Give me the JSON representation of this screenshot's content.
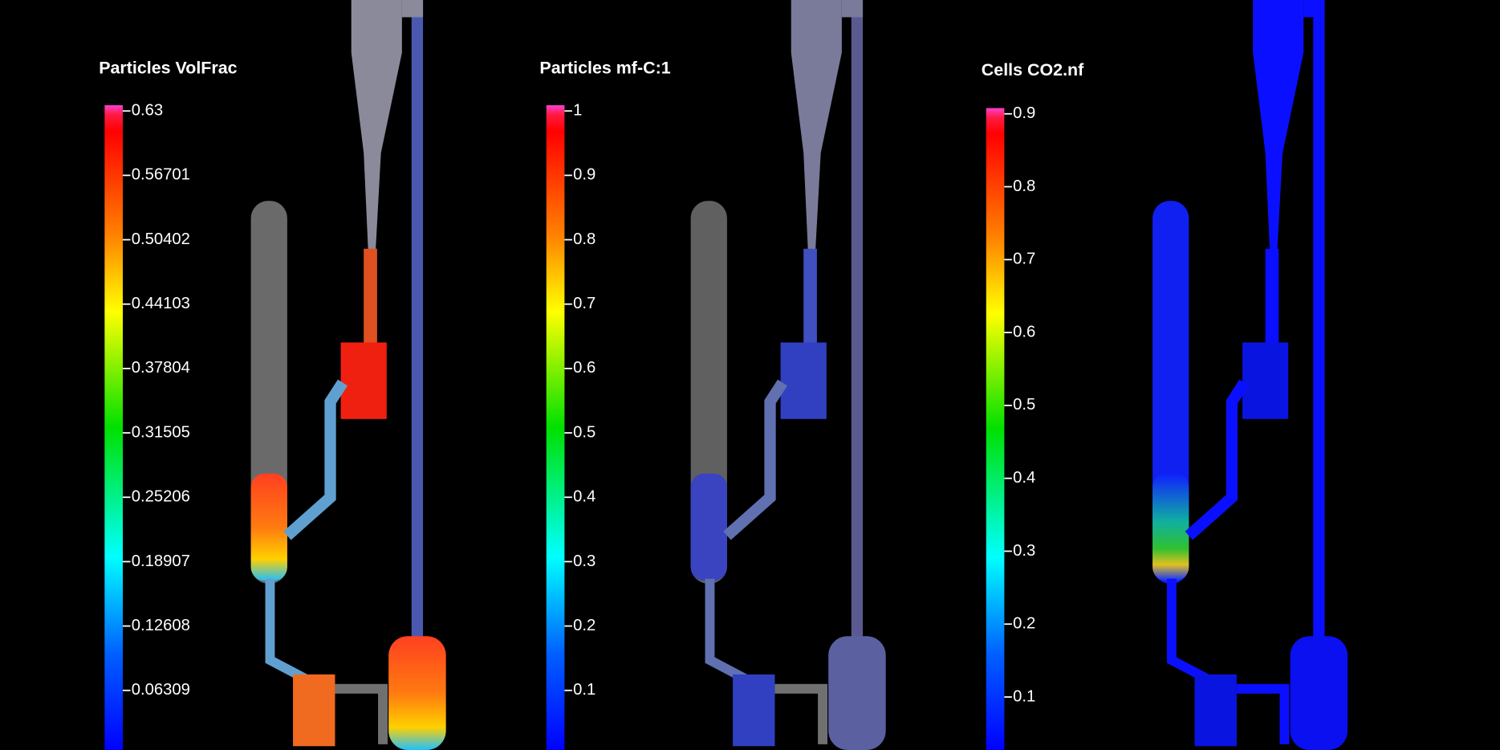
{
  "panels": [
    {
      "title": "Particles VolFrac",
      "ticks": [
        "0.63",
        "0.56701",
        "0.50402",
        "0.44103",
        "0.37804",
        "0.31505",
        "0.25206",
        "0.18907",
        "0.12608",
        "0.06309"
      ]
    },
    {
      "title": "Particles mf-C:1",
      "ticks": [
        "1",
        "0.9",
        "0.8",
        "0.7",
        "0.6",
        "0.5",
        "0.4",
        "0.3",
        "0.2",
        "0.1"
      ]
    },
    {
      "title": "Cells CO2.nf",
      "ticks": [
        "0.9",
        "0.8",
        "0.7",
        "0.6",
        "0.5",
        "0.4",
        "0.3",
        "0.2",
        "0.1"
      ]
    }
  ]
}
